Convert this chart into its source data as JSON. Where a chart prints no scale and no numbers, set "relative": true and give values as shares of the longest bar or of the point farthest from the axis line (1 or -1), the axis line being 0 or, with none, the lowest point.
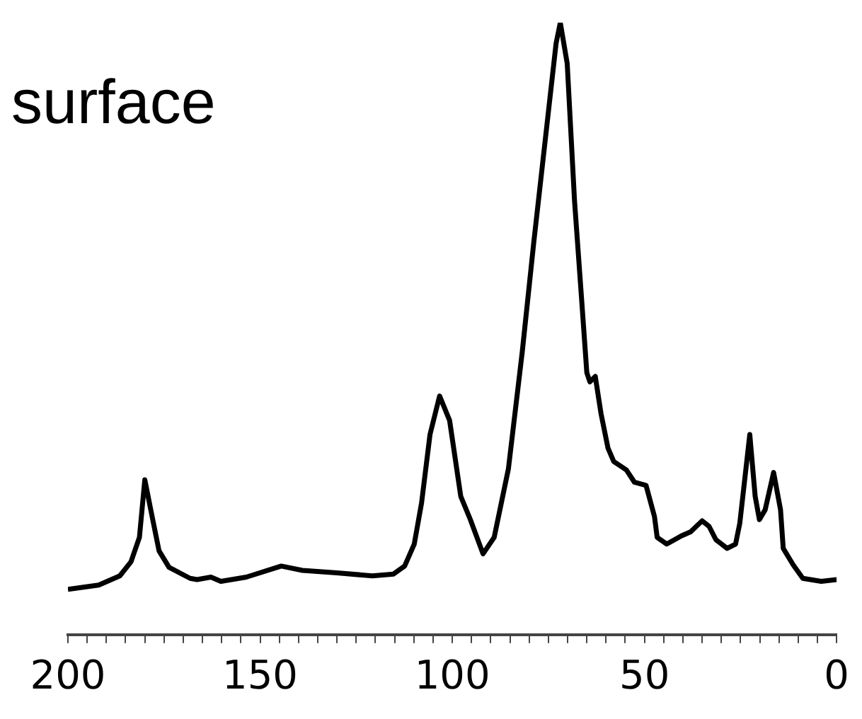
{
  "chart_data": {
    "type": "line",
    "title": "surface",
    "relative": true,
    "grid": false,
    "xlim": [
      200,
      0
    ],
    "xticks": [
      200,
      {
        "value": 195,
        "label": null
      },
      {
        "value": 190,
        "label": null
      },
      {
        "value": 185,
        "label": null
      },
      {
        "value": 180,
        "label": null
      },
      {
        "value": 175,
        "label": null
      },
      {
        "value": 170,
        "label": null
      },
      {
        "value": 165,
        "label": null
      },
      {
        "value": 160,
        "label": null
      },
      {
        "value": 155,
        "label": null
      },
      150,
      {
        "value": 145,
        "label": null
      },
      {
        "value": 140,
        "label": null
      },
      {
        "value": 135,
        "label": null
      },
      {
        "value": 130,
        "label": null
      },
      {
        "value": 125,
        "label": null
      },
      {
        "value": 120,
        "label": null
      },
      {
        "value": 115,
        "label": null
      },
      {
        "value": 110,
        "label": null
      },
      {
        "value": 105,
        "label": null
      },
      100,
      {
        "value": 95,
        "label": null
      },
      {
        "value": 90,
        "label": null
      },
      {
        "value": 85,
        "label": null
      },
      {
        "value": 80,
        "label": null
      },
      {
        "value": 75,
        "label": null
      },
      {
        "value": 70,
        "label": null
      },
      {
        "value": 65,
        "label": null
      },
      {
        "value": 60,
        "label": null
      },
      {
        "value": 55,
        "label": null
      },
      50,
      {
        "value": 45,
        "label": null
      },
      {
        "value": 40,
        "label": null
      },
      {
        "value": 35,
        "label": null
      },
      {
        "value": 30,
        "label": null
      },
      {
        "value": 25,
        "label": null
      },
      {
        "value": 20,
        "label": null
      },
      {
        "value": 15,
        "label": null
      },
      {
        "value": 10,
        "label": null
      },
      {
        "value": 5,
        "label": null
      },
      0
    ],
    "series": [
      {
        "color": "#000000",
        "x": [
          200,
          192,
          186.5,
          183.6,
          181.4,
          180,
          178.1,
          176.3,
          173.7,
          168.2,
          166.4,
          162.8,
          160.2,
          153.6,
          144.5,
          139,
          130,
          120.8,
          115.3,
          112.4,
          109.9,
          108,
          105.8,
          103.3,
          100.7,
          97.8,
          95.3,
          92,
          89.1,
          85.4,
          81.8,
          78.8,
          75.2,
          73,
          71.9,
          70.1,
          68.2,
          66.4,
          65,
          64.2,
          62.8,
          61.3,
          59.5,
          58,
          54.7,
          52.6,
          49.6,
          47.4,
          46.7,
          44.2,
          40.5,
          38,
          35,
          33.2,
          31.4,
          28.5,
          26.3,
          25.2,
          22.6,
          21.2,
          20.1,
          18.6,
          16.4,
          14.6,
          13.9,
          11.3,
          8.8,
          4,
          0
        ],
        "values": [
          0.074,
          0.081,
          0.096,
          0.119,
          0.159,
          0.253,
          0.193,
          0.137,
          0.11,
          0.092,
          0.09,
          0.094,
          0.087,
          0.094,
          0.112,
          0.105,
          0.101,
          0.096,
          0.099,
          0.112,
          0.148,
          0.215,
          0.327,
          0.39,
          0.35,
          0.226,
          0.188,
          0.132,
          0.159,
          0.271,
          0.462,
          0.641,
          0.843,
          0.966,
          1,
          0.933,
          0.709,
          0.552,
          0.428,
          0.413,
          0.422,
          0.361,
          0.305,
          0.283,
          0.269,
          0.249,
          0.244,
          0.193,
          0.159,
          0.148,
          0.161,
          0.168,
          0.186,
          0.177,
          0.155,
          0.141,
          0.148,
          0.182,
          0.327,
          0.226,
          0.188,
          0.204,
          0.265,
          0.204,
          0.141,
          0.114,
          0.092,
          0.087,
          0.09
        ]
      }
    ]
  }
}
